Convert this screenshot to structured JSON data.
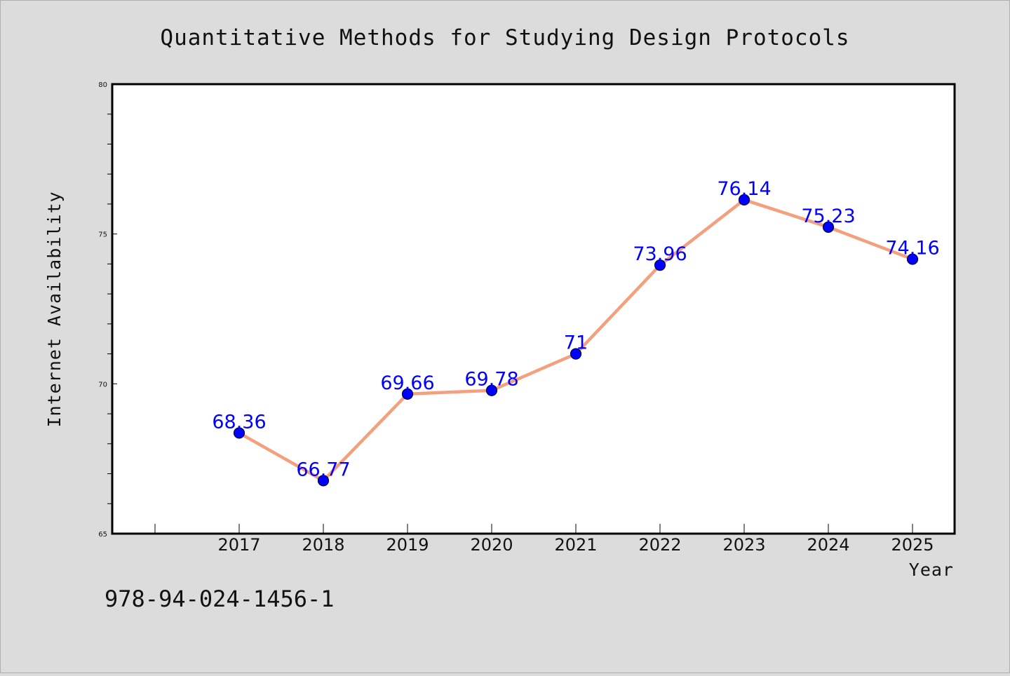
{
  "chart_data": {
    "type": "line",
    "title": "Quantitative Methods for Studying Design Protocols",
    "xlabel": "Year",
    "ylabel": "Internet Availability",
    "categories": [
      "2017",
      "2018",
      "2019",
      "2020",
      "2021",
      "2022",
      "2023",
      "2024",
      "2025"
    ],
    "values": [
      68.36,
      66.77,
      69.66,
      69.78,
      71,
      73.96,
      76.14,
      75.23,
      74.16
    ],
    "data_labels": [
      "68.36",
      "66.77",
      "69.66",
      "69.78",
      "71",
      "73.96",
      "76.14",
      "75.23",
      "74.16"
    ],
    "yticks": [
      "65",
      "70",
      "75",
      "80"
    ],
    "ylim": [
      65,
      80
    ],
    "grid": false,
    "legend": "none",
    "colors": {
      "line": "#f4a07e",
      "marker": "#0000ff",
      "label": "#0000ff"
    }
  },
  "footnote": "978-94-024-1456-1"
}
